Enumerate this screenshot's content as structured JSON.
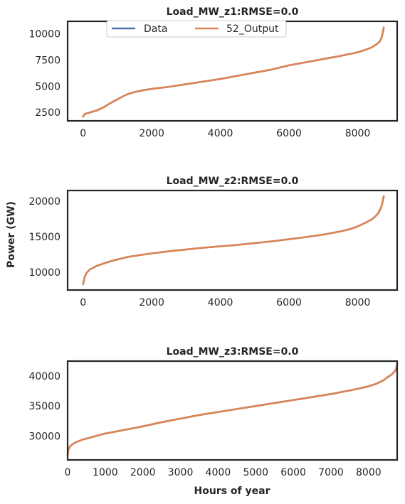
{
  "figure": {
    "ylabel": "Power (GW)",
    "xlabel": "Hours of year"
  },
  "legend": {
    "placement": "upper-center",
    "entries": [
      {
        "name": "Data",
        "color": "#4c72b0"
      },
      {
        "name": "52_Output",
        "color": "#dd8452"
      }
    ]
  },
  "chart_data": [
    {
      "type": "line",
      "title": "Load_MW_z1:RMSE=0.0",
      "xlim": [
        -450,
        9150
      ],
      "ylim": [
        1700,
        11200
      ],
      "xticks": [
        0,
        2000,
        4000,
        6000,
        8000
      ],
      "yticks": [
        2500,
        5000,
        7500,
        10000
      ],
      "grid": false,
      "series": [
        {
          "name": "Data",
          "color": "#4c72b0",
          "x": [
            0,
            50,
            100,
            200,
            400,
            600,
            800,
            1000,
            1200,
            1300,
            1500,
            1800,
            2000,
            2500,
            3000,
            3500,
            4000,
            4500,
            5000,
            5500,
            6000,
            6500,
            7000,
            7500,
            8000,
            8200,
            8400,
            8550,
            8650,
            8700,
            8730,
            8760
          ],
          "y": [
            2100,
            2350,
            2400,
            2500,
            2700,
            3000,
            3400,
            3750,
            4100,
            4250,
            4450,
            4650,
            4750,
            4950,
            5200,
            5450,
            5700,
            6000,
            6300,
            6600,
            7000,
            7300,
            7600,
            7900,
            8250,
            8450,
            8700,
            9000,
            9300,
            9700,
            10100,
            10600
          ]
        },
        {
          "name": "52_Output",
          "color": "#dd8452",
          "x": [
            0,
            50,
            100,
            200,
            400,
            600,
            800,
            1000,
            1200,
            1300,
            1500,
            1800,
            2000,
            2500,
            3000,
            3500,
            4000,
            4500,
            5000,
            5500,
            6000,
            6500,
            7000,
            7500,
            8000,
            8200,
            8400,
            8550,
            8650,
            8700,
            8730,
            8760
          ],
          "y": [
            2100,
            2350,
            2400,
            2500,
            2700,
            3000,
            3400,
            3750,
            4100,
            4250,
            4450,
            4650,
            4750,
            4950,
            5200,
            5450,
            5700,
            6000,
            6300,
            6600,
            7000,
            7300,
            7600,
            7900,
            8250,
            8450,
            8700,
            9000,
            9300,
            9700,
            10100,
            10600
          ]
        }
      ]
    },
    {
      "type": "line",
      "title": "Load_MW_z2:RMSE=0.0",
      "xlim": [
        -450,
        9150
      ],
      "ylim": [
        7500,
        21500
      ],
      "xticks": [
        0,
        2000,
        4000,
        6000,
        8000
      ],
      "yticks": [
        10000,
        15000,
        20000
      ],
      "grid": false,
      "series": [
        {
          "name": "Data",
          "color": "#4c72b0",
          "x": [
            0,
            30,
            60,
            100,
            200,
            400,
            700,
            1000,
            1300,
            1700,
            2000,
            2500,
            3000,
            3500,
            4000,
            4500,
            5000,
            5500,
            6000,
            6500,
            7000,
            7500,
            7800,
            8000,
            8200,
            8400,
            8500,
            8600,
            8650,
            8700,
            8730,
            8760
          ],
          "y": [
            8300,
            9000,
            9500,
            9900,
            10400,
            10900,
            11400,
            11800,
            12150,
            12450,
            12650,
            12950,
            13200,
            13450,
            13650,
            13850,
            14100,
            14350,
            14650,
            14950,
            15300,
            15750,
            16100,
            16450,
            16900,
            17400,
            17800,
            18300,
            18800,
            19400,
            20000,
            20700
          ]
        },
        {
          "name": "52_Output",
          "color": "#dd8452",
          "x": [
            0,
            30,
            60,
            100,
            200,
            400,
            700,
            1000,
            1300,
            1700,
            2000,
            2500,
            3000,
            3500,
            4000,
            4500,
            5000,
            5500,
            6000,
            6500,
            7000,
            7500,
            7800,
            8000,
            8200,
            8400,
            8500,
            8600,
            8650,
            8700,
            8730,
            8760
          ],
          "y": [
            8300,
            9000,
            9500,
            9900,
            10400,
            10900,
            11400,
            11800,
            12150,
            12450,
            12650,
            12950,
            13200,
            13450,
            13650,
            13850,
            14100,
            14350,
            14650,
            14950,
            15300,
            15750,
            16100,
            16450,
            16900,
            17400,
            17800,
            18300,
            18800,
            19400,
            20000,
            20700
          ]
        }
      ]
    },
    {
      "type": "line",
      "title": "Load_MW_z3:RMSE=0.0",
      "xlim": [
        0,
        8760
      ],
      "ylim": [
        26000,
        42500
      ],
      "xticks": [
        0,
        1000,
        2000,
        3000,
        4000,
        5000,
        6000,
        7000,
        8000
      ],
      "yticks": [
        30000,
        35000,
        40000
      ],
      "grid": false,
      "series": [
        {
          "name": "Data",
          "color": "#4c72b0",
          "x": [
            0,
            20,
            50,
            100,
            200,
            400,
            700,
            1000,
            1500,
            2000,
            2500,
            3000,
            3500,
            4000,
            4500,
            5000,
            5500,
            6000,
            6500,
            7000,
            7500,
            7800,
            8000,
            8200,
            8400,
            8500,
            8600,
            8650,
            8700,
            8730,
            8760
          ],
          "y": [
            26800,
            27700,
            28100,
            28500,
            28900,
            29400,
            29900,
            30400,
            31000,
            31600,
            32300,
            32900,
            33500,
            34000,
            34500,
            35000,
            35500,
            36000,
            36500,
            37000,
            37600,
            38000,
            38300,
            38700,
            39300,
            39800,
            40200,
            40500,
            40800,
            41200,
            42000
          ]
        },
        {
          "name": "52_Output",
          "color": "#dd8452",
          "x": [
            0,
            20,
            50,
            100,
            200,
            400,
            700,
            1000,
            1500,
            2000,
            2500,
            3000,
            3500,
            4000,
            4500,
            5000,
            5500,
            6000,
            6500,
            7000,
            7500,
            7800,
            8000,
            8200,
            8400,
            8500,
            8600,
            8650,
            8700,
            8730,
            8760
          ],
          "y": [
            26800,
            27700,
            28100,
            28500,
            28900,
            29400,
            29900,
            30400,
            31000,
            31600,
            32300,
            32900,
            33500,
            34000,
            34500,
            35000,
            35500,
            36000,
            36500,
            37000,
            37600,
            38000,
            38300,
            38700,
            39300,
            39800,
            40200,
            40500,
            40800,
            41200,
            42000
          ]
        }
      ]
    }
  ]
}
